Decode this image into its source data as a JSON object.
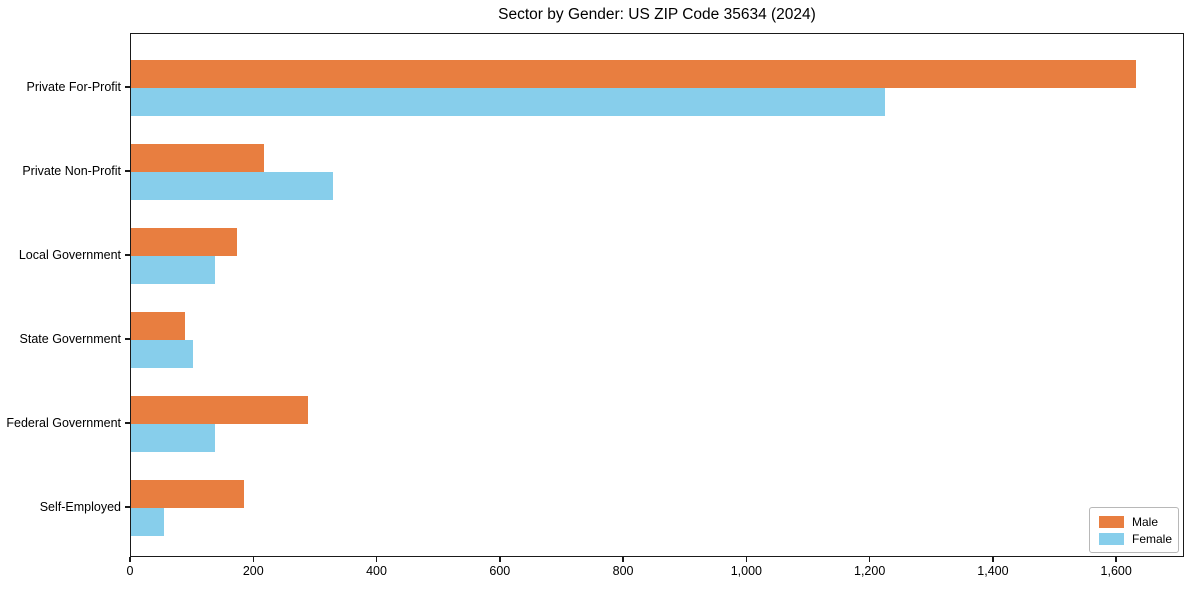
{
  "title": "Sector by Gender: US ZIP Code 35634 (2024)",
  "chart_data": {
    "type": "bar",
    "orientation": "horizontal",
    "title": "Sector by Gender: US ZIP Code 35634 (2024)",
    "xlabel": "",
    "ylabel": "",
    "grid": false,
    "categories": [
      "Private For-Profit",
      "Private Non-Profit",
      "Local Government",
      "State Government",
      "Federal Government",
      "Self-Employed"
    ],
    "series": [
      {
        "name": "Male",
        "color": "#E87E40",
        "values": [
          1630,
          216,
          172,
          88,
          287,
          183
        ]
      },
      {
        "name": "Female",
        "color": "#87CEEB",
        "values": [
          1224,
          327,
          137,
          101,
          137,
          54
        ]
      }
    ],
    "xlim": [
      0,
      1710
    ],
    "xticks": [
      0,
      200,
      400,
      600,
      800,
      1000,
      1200,
      1400,
      1600
    ],
    "xtick_labels": [
      "0",
      "200",
      "400",
      "600",
      "800",
      "1,000",
      "1,200",
      "1,400",
      "1,600"
    ],
    "legend_position": "lower right"
  },
  "legend": {
    "items": [
      {
        "label": "Male",
        "color": "#E87E40"
      },
      {
        "label": "Female",
        "color": "#87CEEB"
      }
    ]
  }
}
